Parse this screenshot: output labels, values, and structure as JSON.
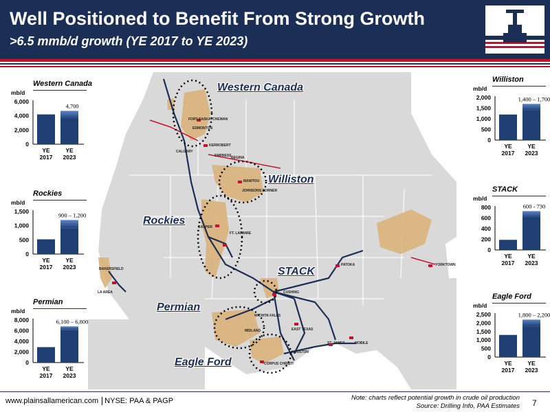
{
  "header": {
    "title": "Well Positioned to Benefit From Strong Growth",
    "subtitle": ">6.5 mmb/d growth (YE 2017 to YE 2023)"
  },
  "colors": {
    "navy": "#1b2e55",
    "bar_2017": "#1f3f73",
    "bar_2023": "#1f3f73",
    "bar_2023_top": "#5b82c8",
    "accent_red": "#c8102e",
    "map_land": "#d9d9d9",
    "map_water": "#ffffff",
    "basin_fill": "#d9b37a"
  },
  "map": {
    "region_labels": [
      "Western Canada",
      "Williston",
      "Rockies",
      "STACK",
      "Permian",
      "Eagle Ford"
    ],
    "cities": [
      "FORT SASKATCHEWAN",
      "EDMONTON",
      "CALGARY",
      "KERROBERT",
      "EMPRESS",
      "REGINA",
      "MANITOU",
      "JOHNSONS CORNER",
      "CASPER",
      "FT. LARAMIE",
      "BAKERSFIELD",
      "LA AREA",
      "CUSHING",
      "PATOKA",
      "YORKTOWN",
      "WICHITA FALLS",
      "MIDLAND",
      "EAST TEXAS",
      "HOUSTON",
      "CORPUS CHRISTI",
      "ST. JAMES",
      "MOBILE"
    ]
  },
  "chart_data": [
    {
      "type": "bar",
      "title": "Western Canada",
      "ylabel": "mb/d",
      "categories": [
        "YE\n2017",
        "YE\n2023"
      ],
      "values": [
        4200,
        4700
      ],
      "range_label": "4,700",
      "yticks": [
        "6,000",
        "4,000",
        "2,000",
        "0"
      ],
      "ylim": [
        0,
        6000
      ]
    },
    {
      "type": "bar",
      "title": "Rockies",
      "ylabel": "mb/d",
      "categories": [
        "YE\n2017",
        "YE\n2023"
      ],
      "values": [
        520,
        1200
      ],
      "range_low": 900,
      "range_label": "900 – 1,200",
      "yticks": [
        "1,500",
        "1,000",
        "500",
        "0"
      ],
      "ylim": [
        0,
        1500
      ]
    },
    {
      "type": "bar",
      "title": "Permian",
      "ylabel": "mb/d",
      "categories": [
        "YE\n2017",
        "YE\n2023"
      ],
      "values": [
        2900,
        6800
      ],
      "range_low": 6100,
      "range_label": "6,100 – 6,800",
      "yticks": [
        "8,000",
        "6,000",
        "4,000",
        "2,000",
        "0"
      ],
      "ylim": [
        0,
        8000
      ]
    },
    {
      "type": "bar",
      "title": "Williston",
      "ylabel": "mb/d",
      "categories": [
        "YE\n2017",
        "YE\n2023"
      ],
      "values": [
        1200,
        1700
      ],
      "range_low": 1400,
      "range_label": "1,400 – 1,700",
      "yticks": [
        "2,000",
        "1,500",
        "1,000",
        "500",
        "0"
      ],
      "ylim": [
        0,
        2000
      ]
    },
    {
      "type": "bar",
      "title": "STACK",
      "ylabel": "mb/d",
      "categories": [
        "YE\n2017",
        "YE\n2023"
      ],
      "values": [
        190,
        730
      ],
      "range_low": 600,
      "range_label": "600 - 730",
      "yticks": [
        "800",
        "600",
        "400",
        "200",
        "0"
      ],
      "ylim": [
        0,
        800
      ]
    },
    {
      "type": "bar",
      "title": "Eagle Ford",
      "ylabel": "mb/d",
      "categories": [
        "YE\n2017",
        "YE\n2023"
      ],
      "values": [
        1300,
        2200
      ],
      "range_low": 1800,
      "range_label": "1,800 – 2,200",
      "yticks": [
        "2,500",
        "2,000",
        "1,500",
        "1,000",
        "500",
        "0"
      ],
      "ylim": [
        0,
        2500
      ]
    }
  ],
  "footer": {
    "url": "www.plainsallamerican.com",
    "ticker": "NYSE: PAA & PAGP",
    "note_line1": "Note: charts reflect potential growth in crude oil production",
    "note_line2": "Source: Drilling Info, PAA Estimates",
    "page": "7"
  }
}
